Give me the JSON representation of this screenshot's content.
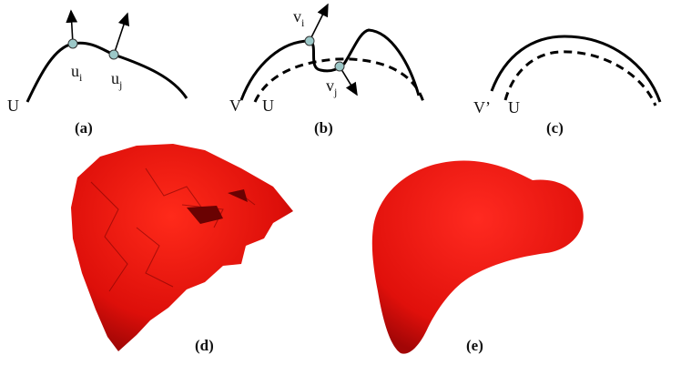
{
  "panels": [
    {
      "caption": "(a)",
      "labels": [
        {
          "base": "u",
          "sub": "i"
        },
        {
          "base": "u",
          "sub": "j"
        },
        {
          "base": "U"
        }
      ]
    },
    {
      "caption": "(b)",
      "labels": [
        {
          "base": "v",
          "sub": "i"
        },
        {
          "base": "v",
          "sub": "j"
        },
        {
          "base": "V"
        },
        {
          "base": "U"
        }
      ]
    },
    {
      "caption": "(c)",
      "labels": [
        {
          "base": "V’"
        },
        {
          "base": "U"
        }
      ]
    },
    {
      "caption": "(d)"
    },
    {
      "caption": "(e)"
    }
  ]
}
